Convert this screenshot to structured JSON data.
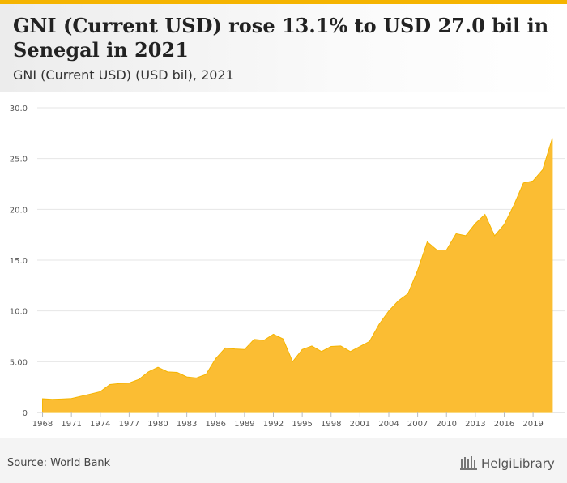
{
  "header": {
    "title": "GNI (Current USD) rose 13.1% to USD 27.0 bil in Senegal in 2021",
    "subtitle": "GNI (Current USD) (USD bil), 2021"
  },
  "footer": {
    "source": "Source: World Bank",
    "logo_text": "HelgiLibrary"
  },
  "colors": {
    "area_fill": "#fbbd33",
    "accent": "#f5b400"
  },
  "chart_data": {
    "type": "area",
    "title": "GNI (Current USD) rose 13.1% to USD 27.0 bil in Senegal in 2021",
    "subtitle": "GNI (Current USD) (USD bil), 2021",
    "xlabel": "",
    "ylabel": "",
    "ylim": [
      0,
      30
    ],
    "yticks": [
      0,
      5,
      10,
      15,
      20,
      25,
      30
    ],
    "ytick_labels": [
      "0",
      "5.00",
      "10.0",
      "15.0",
      "20.0",
      "25.0",
      "30.0"
    ],
    "xticks": [
      1968,
      1971,
      1974,
      1977,
      1980,
      1983,
      1986,
      1989,
      1992,
      1995,
      1998,
      2001,
      2004,
      2007,
      2010,
      2013,
      2016,
      2019
    ],
    "grid": true,
    "legend": "none",
    "x": [
      1968,
      1969,
      1970,
      1971,
      1972,
      1973,
      1974,
      1975,
      1976,
      1977,
      1978,
      1979,
      1980,
      1981,
      1982,
      1983,
      1984,
      1985,
      1986,
      1987,
      1988,
      1989,
      1990,
      1991,
      1992,
      1993,
      1994,
      1995,
      1996,
      1997,
      1998,
      1999,
      2000,
      2001,
      2002,
      2003,
      2004,
      2005,
      2006,
      2007,
      2008,
      2009,
      2010,
      2011,
      2012,
      2013,
      2014,
      2015,
      2016,
      2017,
      2018,
      2019,
      2020,
      2021
    ],
    "series": [
      {
        "values": [
          1.35,
          1.3,
          1.33,
          1.38,
          1.6,
          1.82,
          2.05,
          2.75,
          2.85,
          2.9,
          3.25,
          4.0,
          4.45,
          4.0,
          3.95,
          3.5,
          3.4,
          3.75,
          5.3,
          6.35,
          6.25,
          6.2,
          7.2,
          7.1,
          7.7,
          7.25,
          5.0,
          6.2,
          6.55,
          6.0,
          6.5,
          6.55,
          6.0,
          6.5,
          7.0,
          8.7,
          10.0,
          11.0,
          11.7,
          14.0,
          16.8,
          16.0,
          16.0,
          17.6,
          17.4,
          18.6,
          19.5,
          17.4,
          18.5,
          20.4,
          22.6,
          22.8,
          23.9,
          27.0
        ]
      }
    ]
  }
}
